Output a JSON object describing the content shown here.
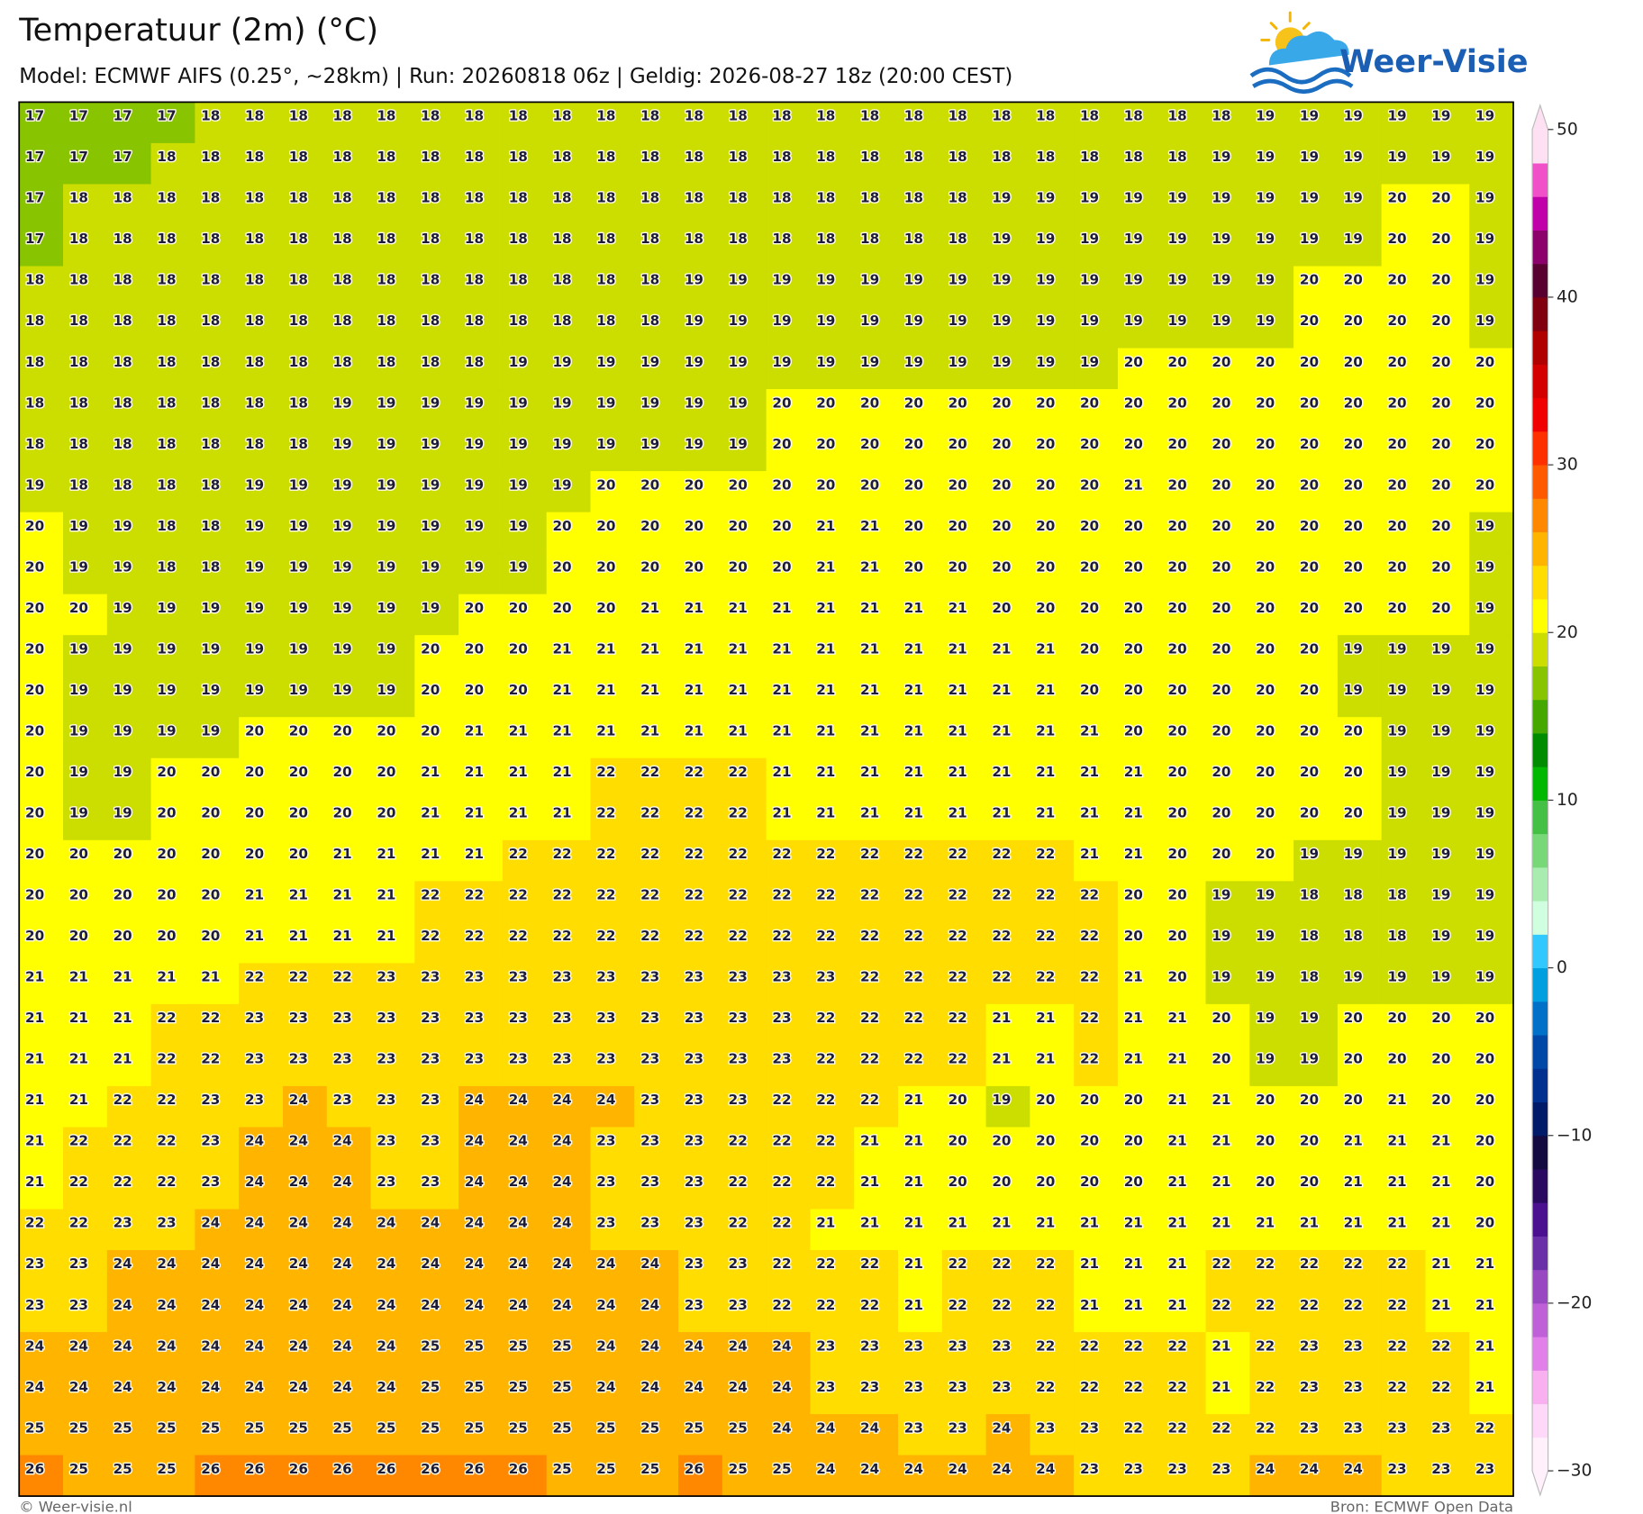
{
  "header": {
    "title": "Temperatuur (2m) (°C)",
    "subtitle": "Model: ECMWF AIFS (0.25°, ~28km)  |  Run: 20260818 06z  |  Geldig: 2026-08-27 18z (20:00 CEST)",
    "logo": "Weer-Visie"
  },
  "footer": {
    "left": "© Weer-visie.nl",
    "right": "Bron: ECMWF Open Data"
  },
  "colorbar": {
    "lim": [
      -30,
      50
    ],
    "colors": [
      "#fff0fc",
      "#fdd8f8",
      "#f8b0f0",
      "#e080e8",
      "#c060d8",
      "#9848c0",
      "#6a30a8",
      "#4a1090",
      "#2a0a60",
      "#120a40",
      "#001a6a",
      "#00308f",
      "#0048a8",
      "#0070c8",
      "#00a0e0",
      "#30c8ff",
      "#d0ffe0",
      "#a8ecb0",
      "#78d878",
      "#44c044",
      "#00b800",
      "#008c00",
      "#44a800",
      "#88c400",
      "#ccdd00",
      "#ffff00",
      "#ffdd00",
      "#ffb400",
      "#ff8800",
      "#ff5a00",
      "#ff3000",
      "#f00000",
      "#d40000",
      "#b00000",
      "#800010",
      "#580030",
      "#8c006c",
      "#c000a8",
      "#f050c8",
      "#fde0f2"
    ],
    "ticks": [
      50,
      40,
      30,
      20,
      10,
      0,
      {
        "value": -10,
        "label": "−10"
      },
      {
        "value": -20,
        "label": "−20"
      },
      {
        "value": -30,
        "label": "−30"
      }
    ]
  },
  "grid": {
    "rows": [
      [
        17,
        17,
        17,
        17,
        18,
        18,
        18,
        18,
        18,
        18,
        18,
        18,
        18,
        18,
        18,
        18,
        18,
        18,
        18,
        18,
        18,
        18,
        18,
        18,
        18,
        18,
        18,
        18,
        19,
        19,
        19,
        19,
        19,
        19
      ],
      [
        17,
        17,
        17,
        18,
        18,
        18,
        18,
        18,
        18,
        18,
        18,
        18,
        18,
        18,
        18,
        18,
        18,
        18,
        18,
        18,
        18,
        18,
        18,
        18,
        18,
        18,
        18,
        19,
        19,
        19,
        19,
        19,
        19,
        19
      ],
      [
        17,
        18,
        18,
        18,
        18,
        18,
        18,
        18,
        18,
        18,
        18,
        18,
        18,
        18,
        18,
        18,
        18,
        18,
        18,
        18,
        18,
        18,
        19,
        19,
        19,
        19,
        19,
        19,
        19,
        19,
        19,
        20,
        20,
        19
      ],
      [
        17,
        18,
        18,
        18,
        18,
        18,
        18,
        18,
        18,
        18,
        18,
        18,
        18,
        18,
        18,
        18,
        18,
        18,
        18,
        18,
        18,
        18,
        19,
        19,
        19,
        19,
        19,
        19,
        19,
        19,
        19,
        20,
        20,
        19
      ],
      [
        18,
        18,
        18,
        18,
        18,
        18,
        18,
        18,
        18,
        18,
        18,
        18,
        18,
        18,
        18,
        19,
        19,
        19,
        19,
        19,
        19,
        19,
        19,
        19,
        19,
        19,
        19,
        19,
        19,
        20,
        20,
        20,
        20,
        19
      ],
      [
        18,
        18,
        18,
        18,
        18,
        18,
        18,
        18,
        18,
        18,
        18,
        18,
        18,
        18,
        18,
        19,
        19,
        19,
        19,
        19,
        19,
        19,
        19,
        19,
        19,
        19,
        19,
        19,
        19,
        20,
        20,
        20,
        20,
        19
      ],
      [
        18,
        18,
        18,
        18,
        18,
        18,
        18,
        18,
        18,
        18,
        18,
        19,
        19,
        19,
        19,
        19,
        19,
        19,
        19,
        19,
        19,
        19,
        19,
        19,
        19,
        20,
        20,
        20,
        20,
        20,
        20,
        20,
        20,
        20
      ],
      [
        18,
        18,
        18,
        18,
        18,
        18,
        18,
        19,
        19,
        19,
        19,
        19,
        19,
        19,
        19,
        19,
        19,
        20,
        20,
        20,
        20,
        20,
        20,
        20,
        20,
        20,
        20,
        20,
        20,
        20,
        20,
        20,
        20,
        20
      ],
      [
        18,
        18,
        18,
        18,
        18,
        18,
        18,
        19,
        19,
        19,
        19,
        19,
        19,
        19,
        19,
        19,
        19,
        20,
        20,
        20,
        20,
        20,
        20,
        20,
        20,
        20,
        20,
        20,
        20,
        20,
        20,
        20,
        20,
        20
      ],
      [
        19,
        18,
        18,
        18,
        18,
        19,
        19,
        19,
        19,
        19,
        19,
        19,
        19,
        20,
        20,
        20,
        20,
        20,
        20,
        20,
        20,
        20,
        20,
        20,
        20,
        21,
        20,
        20,
        20,
        20,
        20,
        20,
        20,
        20
      ],
      [
        20,
        19,
        19,
        18,
        18,
        19,
        19,
        19,
        19,
        19,
        19,
        19,
        20,
        20,
        20,
        20,
        20,
        20,
        21,
        21,
        20,
        20,
        20,
        20,
        20,
        20,
        20,
        20,
        20,
        20,
        20,
        20,
        20,
        19
      ],
      [
        20,
        19,
        19,
        18,
        18,
        19,
        19,
        19,
        19,
        19,
        19,
        19,
        20,
        20,
        20,
        20,
        20,
        20,
        21,
        21,
        20,
        20,
        20,
        20,
        20,
        20,
        20,
        20,
        20,
        20,
        20,
        20,
        20,
        19
      ],
      [
        20,
        20,
        19,
        19,
        19,
        19,
        19,
        19,
        19,
        19,
        20,
        20,
        20,
        20,
        21,
        21,
        21,
        21,
        21,
        21,
        21,
        21,
        20,
        20,
        20,
        20,
        20,
        20,
        20,
        20,
        20,
        20,
        20,
        19
      ],
      [
        20,
        19,
        19,
        19,
        19,
        19,
        19,
        19,
        19,
        20,
        20,
        20,
        21,
        21,
        21,
        21,
        21,
        21,
        21,
        21,
        21,
        21,
        21,
        21,
        20,
        20,
        20,
        20,
        20,
        20,
        19,
        19,
        19,
        19
      ],
      [
        20,
        19,
        19,
        19,
        19,
        19,
        19,
        19,
        19,
        20,
        20,
        20,
        21,
        21,
        21,
        21,
        21,
        21,
        21,
        21,
        21,
        21,
        21,
        21,
        20,
        20,
        20,
        20,
        20,
        20,
        19,
        19,
        19,
        19
      ],
      [
        20,
        19,
        19,
        19,
        19,
        20,
        20,
        20,
        20,
        20,
        21,
        21,
        21,
        21,
        21,
        21,
        21,
        21,
        21,
        21,
        21,
        21,
        21,
        21,
        21,
        20,
        20,
        20,
        20,
        20,
        20,
        19,
        19,
        19
      ],
      [
        20,
        19,
        19,
        20,
        20,
        20,
        20,
        20,
        20,
        21,
        21,
        21,
        21,
        22,
        22,
        22,
        22,
        21,
        21,
        21,
        21,
        21,
        21,
        21,
        21,
        21,
        20,
        20,
        20,
        20,
        20,
        19,
        19,
        19
      ],
      [
        20,
        19,
        19,
        20,
        20,
        20,
        20,
        20,
        20,
        21,
        21,
        21,
        21,
        22,
        22,
        22,
        22,
        21,
        21,
        21,
        21,
        21,
        21,
        21,
        21,
        21,
        20,
        20,
        20,
        20,
        20,
        19,
        19,
        19
      ],
      [
        20,
        20,
        20,
        20,
        20,
        20,
        20,
        21,
        21,
        21,
        21,
        22,
        22,
        22,
        22,
        22,
        22,
        22,
        22,
        22,
        22,
        22,
        22,
        22,
        21,
        21,
        20,
        20,
        20,
        19,
        19,
        19,
        19,
        19
      ],
      [
        20,
        20,
        20,
        20,
        20,
        21,
        21,
        21,
        21,
        22,
        22,
        22,
        22,
        22,
        22,
        22,
        22,
        22,
        22,
        22,
        22,
        22,
        22,
        22,
        22,
        20,
        20,
        19,
        19,
        18,
        18,
        18,
        19,
        19
      ],
      [
        20,
        20,
        20,
        20,
        20,
        21,
        21,
        21,
        21,
        22,
        22,
        22,
        22,
        22,
        22,
        22,
        22,
        22,
        22,
        22,
        22,
        22,
        22,
        22,
        22,
        20,
        20,
        19,
        19,
        18,
        18,
        18,
        19,
        19
      ],
      [
        21,
        21,
        21,
        21,
        21,
        22,
        22,
        22,
        23,
        23,
        23,
        23,
        23,
        23,
        23,
        23,
        23,
        23,
        23,
        22,
        22,
        22,
        22,
        22,
        22,
        21,
        20,
        19,
        19,
        18,
        19,
        19,
        19,
        19
      ],
      [
        21,
        21,
        21,
        22,
        22,
        23,
        23,
        23,
        23,
        23,
        23,
        23,
        23,
        23,
        23,
        23,
        23,
        23,
        22,
        22,
        22,
        22,
        21,
        21,
        22,
        21,
        21,
        20,
        19,
        19,
        20,
        20,
        20,
        20
      ],
      [
        21,
        21,
        21,
        22,
        22,
        23,
        23,
        23,
        23,
        23,
        23,
        23,
        23,
        23,
        23,
        23,
        23,
        23,
        22,
        22,
        22,
        22,
        21,
        21,
        22,
        21,
        21,
        20,
        19,
        19,
        20,
        20,
        20,
        20
      ],
      [
        21,
        21,
        22,
        22,
        23,
        23,
        24,
        23,
        23,
        23,
        24,
        24,
        24,
        24,
        23,
        23,
        23,
        22,
        22,
        22,
        21,
        20,
        19,
        20,
        20,
        20,
        21,
        21,
        20,
        20,
        20,
        21,
        20,
        20
      ],
      [
        21,
        22,
        22,
        22,
        23,
        24,
        24,
        24,
        23,
        23,
        24,
        24,
        24,
        23,
        23,
        23,
        22,
        22,
        22,
        21,
        21,
        20,
        20,
        20,
        20,
        20,
        21,
        21,
        20,
        20,
        21,
        21,
        21,
        20
      ],
      [
        21,
        22,
        22,
        22,
        23,
        24,
        24,
        24,
        23,
        23,
        24,
        24,
        24,
        23,
        23,
        23,
        22,
        22,
        22,
        21,
        21,
        20,
        20,
        20,
        20,
        20,
        21,
        21,
        20,
        20,
        21,
        21,
        21,
        20
      ],
      [
        22,
        22,
        23,
        23,
        24,
        24,
        24,
        24,
        24,
        24,
        24,
        24,
        24,
        23,
        23,
        23,
        22,
        22,
        21,
        21,
        21,
        21,
        21,
        21,
        21,
        21,
        21,
        21,
        21,
        21,
        21,
        21,
        21,
        20
      ],
      [
        23,
        23,
        24,
        24,
        24,
        24,
        24,
        24,
        24,
        24,
        24,
        24,
        24,
        24,
        24,
        23,
        23,
        22,
        22,
        22,
        21,
        22,
        22,
        22,
        21,
        21,
        21,
        22,
        22,
        22,
        22,
        22,
        21,
        21
      ],
      [
        23,
        23,
        24,
        24,
        24,
        24,
        24,
        24,
        24,
        24,
        24,
        24,
        24,
        24,
        24,
        23,
        23,
        22,
        22,
        22,
        21,
        22,
        22,
        22,
        21,
        21,
        21,
        22,
        22,
        22,
        22,
        22,
        21,
        21
      ],
      [
        24,
        24,
        24,
        24,
        24,
        24,
        24,
        24,
        24,
        25,
        25,
        25,
        25,
        24,
        24,
        24,
        24,
        24,
        23,
        23,
        23,
        23,
        23,
        22,
        22,
        22,
        22,
        21,
        22,
        23,
        23,
        22,
        22,
        21
      ],
      [
        24,
        24,
        24,
        24,
        24,
        24,
        24,
        24,
        24,
        25,
        25,
        25,
        25,
        24,
        24,
        24,
        24,
        24,
        23,
        23,
        23,
        23,
        23,
        22,
        22,
        22,
        22,
        21,
        22,
        23,
        23,
        22,
        22,
        21
      ],
      [
        25,
        25,
        25,
        25,
        25,
        25,
        25,
        25,
        25,
        25,
        25,
        25,
        25,
        25,
        25,
        25,
        25,
        24,
        24,
        24,
        23,
        23,
        24,
        23,
        23,
        22,
        22,
        22,
        22,
        23,
        23,
        23,
        23,
        22
      ],
      [
        26,
        25,
        25,
        25,
        26,
        26,
        26,
        26,
        26,
        26,
        26,
        26,
        25,
        25,
        25,
        26,
        25,
        25,
        24,
        24,
        24,
        24,
        24,
        24,
        23,
        23,
        23,
        23,
        24,
        24,
        24,
        23,
        23,
        23
      ]
    ]
  }
}
